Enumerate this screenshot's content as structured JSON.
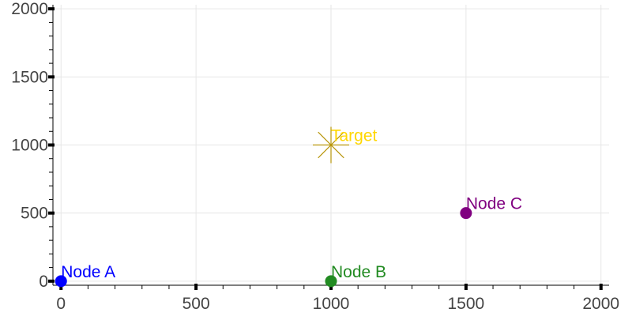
{
  "chart_data": {
    "type": "scatter",
    "title": "",
    "xlabel": "",
    "ylabel": "",
    "xlim": [
      -30,
      2030
    ],
    "ylim": [
      -30,
      2030
    ],
    "x_ticks": [
      0,
      500,
      1000,
      1500,
      2000
    ],
    "y_ticks": [
      0,
      500,
      1000,
      1500,
      2000
    ],
    "x_tick_labels": [
      "0",
      "500",
      "1000",
      "1500",
      "2000"
    ],
    "y_tick_labels": [
      "0",
      "500",
      "1000",
      "1500",
      "2000"
    ],
    "grid": true,
    "legend": "none",
    "points": [
      {
        "label": "Node A",
        "x": 0,
        "y": 0,
        "color": "#0000ff",
        "marker": "circle"
      },
      {
        "label": "Node B",
        "x": 1000,
        "y": 0,
        "color": "#228b22",
        "marker": "circle"
      },
      {
        "label": "Node C",
        "x": 1500,
        "y": 500,
        "color": "#800080",
        "marker": "circle"
      },
      {
        "label": "Target",
        "x": 1000,
        "y": 1000,
        "color": "#b8960b",
        "label_color": "#ffd700",
        "marker": "star"
      }
    ]
  }
}
